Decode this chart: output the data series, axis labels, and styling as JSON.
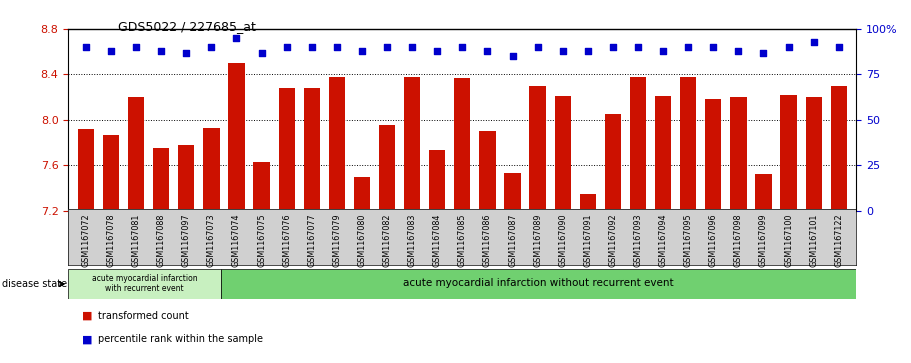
{
  "title": "GDS5022 / 227685_at",
  "samples": [
    "GSM1167072",
    "GSM1167078",
    "GSM1167081",
    "GSM1167088",
    "GSM1167097",
    "GSM1167073",
    "GSM1167074",
    "GSM1167075",
    "GSM1167076",
    "GSM1167077",
    "GSM1167079",
    "GSM1167080",
    "GSM1167082",
    "GSM1167083",
    "GSM1167084",
    "GSM1167085",
    "GSM1167086",
    "GSM1167087",
    "GSM1167089",
    "GSM1167090",
    "GSM1167091",
    "GSM1167092",
    "GSM1167093",
    "GSM1167094",
    "GSM1167095",
    "GSM1167096",
    "GSM1167098",
    "GSM1167099",
    "GSM1167100",
    "GSM1167101",
    "GSM1167122"
  ],
  "bar_values": [
    7.92,
    7.87,
    8.2,
    7.75,
    7.78,
    7.93,
    8.5,
    7.63,
    8.28,
    8.28,
    8.38,
    7.5,
    7.95,
    8.38,
    7.73,
    8.37,
    7.9,
    7.53,
    8.3,
    8.21,
    7.35,
    8.05,
    8.38,
    8.21,
    8.38,
    8.18,
    8.2,
    7.52,
    8.22,
    8.2,
    8.3
  ],
  "percentile_values": [
    90,
    88,
    90,
    88,
    87,
    90,
    95,
    87,
    90,
    90,
    90,
    88,
    90,
    90,
    88,
    90,
    88,
    85,
    90,
    88,
    88,
    90,
    90,
    88,
    90,
    90,
    88,
    87,
    90,
    93,
    90
  ],
  "group1_count": 6,
  "group1_label": "acute myocardial infarction\nwith recurrent event",
  "group2_label": "acute myocardial infarction without recurrent event",
  "ylim_left": [
    7.2,
    8.8
  ],
  "ylim_right": [
    0,
    100
  ],
  "yticks_left": [
    7.2,
    7.6,
    8.0,
    8.4,
    8.8
  ],
  "yticks_right": [
    0,
    25,
    50,
    75,
    100
  ],
  "bar_color": "#cc1100",
  "dot_color": "#0000cc",
  "legend_bar_label": "transformed count",
  "legend_dot_label": "percentile rank within the sample",
  "bg_color": "#d0d0d0",
  "group1_bg": "#c8f0c0",
  "group2_bg": "#70d070",
  "disease_state_label": "disease state"
}
